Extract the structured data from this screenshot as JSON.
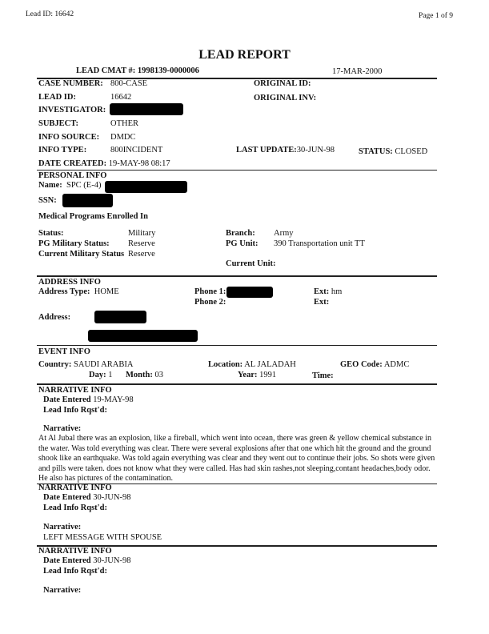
{
  "header": {
    "lead_id": "Lead ID: 16642",
    "page": "Page  1  of  9"
  },
  "title": "LEAD REPORT",
  "cmat": "LEAD CMAT #: 1998139-0000006",
  "report_date": "17-MAR-2000",
  "case": {
    "case_number_label": "CASE NUMBER:",
    "case_number": "800-CASE",
    "lead_id_label": "LEAD ID:",
    "lead_id": "16642",
    "investigator_label": "INVESTIGATOR:",
    "subject_label": "SUBJECT:",
    "subject": "OTHER",
    "info_source_label": "INFO SOURCE:",
    "info_source": "DMDC",
    "info_type_label": "INFO TYPE:",
    "info_type": "800INCIDENT",
    "date_created_label": "DATE CREATED:",
    "date_created": "19-MAY-98 08:17",
    "original_id_label": "ORIGINAL ID:",
    "original_inv_label": "ORIGINAL INV:",
    "last_update_label": "LAST UPDATE:",
    "last_update": "30-JUN-98",
    "status_label": "STATUS:",
    "status": "CLOSED"
  },
  "personal": {
    "heading": "PERSONAL INFO",
    "name_label": "Name:",
    "name_prefix": "SPC (E-4)",
    "ssn_label": "SSN:",
    "medical_label": "Medical Programs Enrolled In",
    "status_label": "Status:",
    "status": "Military",
    "pg_status_label": "PG Military Status:",
    "pg_status": "Reserve",
    "current_status_label": "Current Military Status",
    "current_status": "Reserve",
    "branch_label": "Branch:",
    "branch": "Army",
    "pg_unit_label": "PG Unit:",
    "pg_unit": "390 Transportation unit TT",
    "current_unit_label": "Current Unit:"
  },
  "address": {
    "heading": "ADDRESS INFO",
    "type_label": "Address Type:",
    "type": "HOME",
    "phone1_label": "Phone 1:",
    "phone2_label": "Phone 2:",
    "ext1_label": "Ext:",
    "ext1": "hm",
    "ext2_label": "Ext:",
    "address_label": "Address:"
  },
  "event": {
    "heading": "EVENT INFO",
    "country_label": "Country:",
    "country": "SAUDI ARABIA",
    "day_label": "Day:",
    "day": "1",
    "month_label": "Month:",
    "month": "03",
    "location_label": "Location:",
    "location": "AL JALADAH",
    "year_label": "Year:",
    "year": "1991",
    "time_label": "Time:",
    "geo_label": "GEO Code:",
    "geo": "ADMC"
  },
  "narratives": [
    {
      "heading": "NARRATIVE INFO",
      "date_label": "Date Entered",
      "date": "19-MAY-98",
      "lead_label": "Lead Info Rqst'd:",
      "narrative_label": "Narrative:",
      "text": "At Al Jubal there was an explosion, like a fireball, which went into ocean, there was green & yellow chemical substance in the water. Was told everything was clear. There were several explosions after that one which hit the ground and the ground shook like an earthquake.  Was told again everything was clear and they went out to continue their jobs. So shots were given and pills were taken.  does not know what they were called. Has had skin rashes,not sleeping,contant headaches,body odor. He also has pictures of the contamination."
    },
    {
      "heading": "NARRATIVE INFO",
      "date_label": "Date Entered",
      "date": "30-JUN-98",
      "lead_label": "Lead Info Rqst'd:",
      "narrative_label": "Narrative:",
      "text": "LEFT MESSAGE WITH SPOUSE"
    },
    {
      "heading": "NARRATIVE INFO",
      "date_label": "Date Entered",
      "date": "30-JUN-98",
      "lead_label": "Lead Info Rqst'd:",
      "narrative_label": "Narrative:"
    }
  ]
}
